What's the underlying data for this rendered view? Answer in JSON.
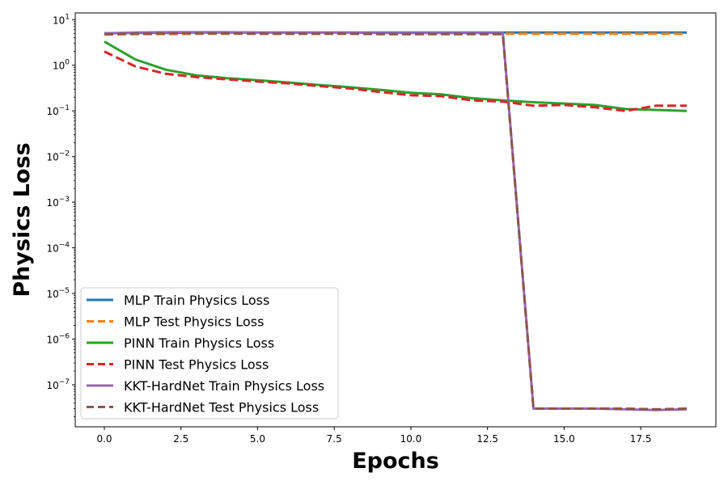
{
  "chart_data": {
    "type": "line",
    "title": "",
    "xlabel": "Epochs",
    "ylabel": "Physics Loss",
    "xlim": [
      -0.95,
      19.95
    ],
    "ylim": [
      1.2e-08,
      14
    ],
    "y_scale": "log",
    "grid": false,
    "legend_position": "lower-left",
    "x_ticks": [
      {
        "value": 0.0,
        "label": "0.0"
      },
      {
        "value": 2.5,
        "label": "2.5"
      },
      {
        "value": 5.0,
        "label": "5.0"
      },
      {
        "value": 7.5,
        "label": "7.5"
      },
      {
        "value": 10.0,
        "label": "10.0"
      },
      {
        "value": 12.5,
        "label": "12.5"
      },
      {
        "value": 15.0,
        "label": "15.0"
      },
      {
        "value": 17.5,
        "label": "17.5"
      }
    ],
    "y_ticks": [
      {
        "value": 10.0,
        "base": "10",
        "exp": "1"
      },
      {
        "value": 1.0,
        "base": "10",
        "exp": "0"
      },
      {
        "value": 0.1,
        "base": "10",
        "exp": "−1"
      },
      {
        "value": 0.01,
        "base": "10",
        "exp": "−2"
      },
      {
        "value": 0.001,
        "base": "10",
        "exp": "−3"
      },
      {
        "value": 0.0001,
        "base": "10",
        "exp": "−4"
      },
      {
        "value": 1e-05,
        "base": "10",
        "exp": "−5"
      },
      {
        "value": 1e-06,
        "base": "10",
        "exp": "−6"
      },
      {
        "value": 1e-07,
        "base": "10",
        "exp": "−7"
      }
    ],
    "x": [
      0,
      1,
      2,
      3,
      4,
      5,
      6,
      7,
      8,
      9,
      10,
      11,
      12,
      13,
      14,
      15,
      16,
      17,
      18,
      19
    ],
    "series": [
      {
        "name": "MLP Train Physics Loss",
        "color": "#1f77b4",
        "style": "solid",
        "values": [
          5.0,
          5.1,
          5.1,
          5.2,
          5.2,
          5.2,
          5.2,
          5.2,
          5.2,
          5.2,
          5.2,
          5.2,
          5.2,
          5.2,
          5.2,
          5.2,
          5.2,
          5.2,
          5.2,
          5.2
        ]
      },
      {
        "name": "MLP Test Physics Loss",
        "color": "#ff7f0e",
        "style": "dashed",
        "values": [
          4.7,
          4.8,
          4.8,
          4.9,
          4.9,
          4.9,
          4.9,
          4.9,
          4.9,
          4.9,
          4.9,
          4.9,
          4.9,
          4.9,
          4.9,
          4.9,
          4.9,
          4.9,
          4.9,
          4.9
        ]
      },
      {
        "name": "PINN Train Physics Loss",
        "color": "#2ca02c",
        "style": "solid",
        "values": [
          3.3,
          1.35,
          0.8,
          0.6,
          0.52,
          0.47,
          0.42,
          0.37,
          0.33,
          0.29,
          0.25,
          0.23,
          0.19,
          0.17,
          0.155,
          0.145,
          0.135,
          0.11,
          0.105,
          0.1
        ]
      },
      {
        "name": "PINN Test Physics Loss",
        "color": "#d62728",
        "style": "dashed",
        "values": [
          2.0,
          0.95,
          0.65,
          0.55,
          0.49,
          0.44,
          0.4,
          0.35,
          0.31,
          0.26,
          0.22,
          0.21,
          0.17,
          0.16,
          0.13,
          0.135,
          0.12,
          0.1,
          0.13,
          0.13
        ]
      },
      {
        "name": "KKT-HardNet Train Physics Loss",
        "color": "#9467bd",
        "style": "solid",
        "values": [
          5.0,
          5.2,
          5.3,
          5.3,
          5.3,
          5.2,
          5.2,
          5.2,
          5.2,
          5.1,
          5.1,
          5.1,
          5.1,
          5.1,
          3e-08,
          3e-08,
          3e-08,
          2.9e-08,
          2.8e-08,
          2.9e-08
        ]
      },
      {
        "name": "KKT-HardNet Test Physics Loss",
        "color": "#8c564b",
        "style": "dashed",
        "values": [
          4.8,
          4.9,
          5.0,
          5.0,
          5.0,
          4.9,
          4.9,
          4.9,
          4.9,
          4.8,
          4.8,
          4.8,
          4.8,
          4.8,
          3e-08,
          3e-08,
          3e-08,
          3e-08,
          2.9e-08,
          3e-08
        ]
      }
    ]
  }
}
